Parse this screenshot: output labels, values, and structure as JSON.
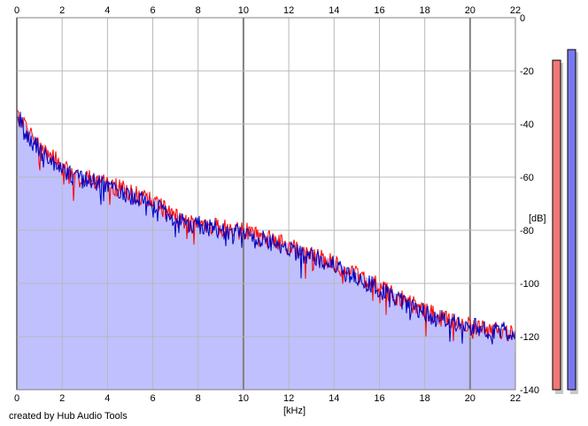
{
  "chart_data": {
    "type": "line",
    "title": "",
    "xlabel": "[kHz]",
    "ylabel": "[dB]",
    "xlim": [
      0,
      22
    ],
    "ylim": [
      -140,
      0
    ],
    "x_ticks": [
      "0",
      "2",
      "4",
      "6",
      "8",
      "10",
      "12",
      "14",
      "16",
      "18",
      "20",
      "22"
    ],
    "y_ticks": [
      "0",
      "-20",
      "-40",
      "-60",
      "-80",
      "-100",
      "-120",
      "-140"
    ],
    "grid": true,
    "legend": "none",
    "series": [
      {
        "color": "#ff0000",
        "x": [
          0,
          0.3,
          0.6,
          1,
          1.5,
          2,
          2.5,
          3,
          3.5,
          4,
          4.5,
          5,
          5.5,
          6,
          6.5,
          7,
          7.5,
          8,
          8.5,
          9,
          9.5,
          10,
          10.5,
          11,
          11.5,
          12,
          12.5,
          13,
          13.5,
          14,
          14.5,
          15,
          15.5,
          16,
          16.5,
          17,
          17.5,
          18,
          18.5,
          19,
          19.5,
          20,
          20.5,
          21,
          21.5,
          22
        ],
        "y": [
          -37,
          -40,
          -44,
          -48,
          -52,
          -56,
          -59,
          -60,
          -61,
          -63,
          -64,
          -66,
          -67,
          -69,
          -72,
          -75,
          -77,
          -77,
          -78,
          -79,
          -80,
          -80,
          -81,
          -83,
          -84,
          -86,
          -88,
          -89,
          -91,
          -92,
          -95,
          -97,
          -99,
          -101,
          -104,
          -106,
          -108,
          -110,
          -112,
          -114,
          -115,
          -116,
          -117,
          -118,
          -118,
          -119
        ]
      },
      {
        "color": "#0000c0",
        "x": [
          0,
          0.3,
          0.6,
          1,
          1.5,
          2,
          2.5,
          3,
          3.5,
          4,
          4.5,
          5,
          5.5,
          6,
          6.5,
          7,
          7.5,
          8,
          8.5,
          9,
          9.5,
          10,
          10.5,
          11,
          11.5,
          12,
          12.5,
          13,
          13.5,
          14,
          14.5,
          15,
          15.5,
          16,
          16.5,
          17,
          17.5,
          18,
          18.5,
          19,
          19.5,
          20,
          20.5,
          21,
          21.5,
          22
        ],
        "y": [
          -35,
          -42,
          -46,
          -50,
          -53,
          -57,
          -60,
          -61,
          -62,
          -64,
          -65,
          -67,
          -68,
          -70,
          -73,
          -76,
          -78,
          -78,
          -79,
          -80,
          -81,
          -81,
          -82,
          -84,
          -85,
          -87,
          -89,
          -90,
          -92,
          -93,
          -96,
          -98,
          -100,
          -102,
          -105,
          -107,
          -109,
          -111,
          -113,
          -114,
          -115,
          -116,
          -117,
          -118,
          -118,
          -118
        ]
      }
    ],
    "level_meters": [
      {
        "color": "#f07878",
        "level_db": -16
      },
      {
        "color": "#7878f0",
        "level_db": -12
      }
    ],
    "colors": {
      "fill": "#c0c0ff",
      "grid": "#b8b8b8",
      "grid_major": "#808080"
    }
  },
  "footer": {
    "credit": "created by Hub Audio Tools"
  }
}
